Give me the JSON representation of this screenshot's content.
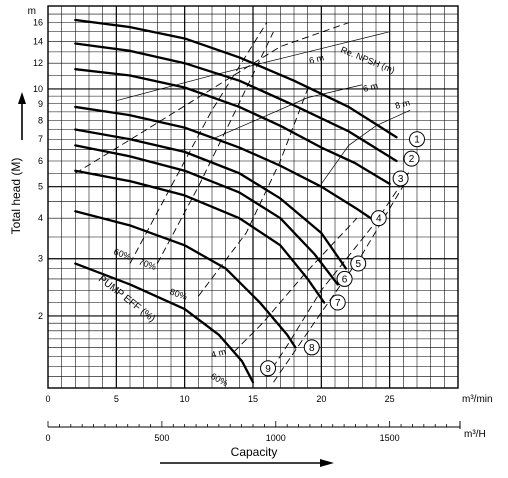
{
  "chart_data": {
    "type": "line",
    "title": "",
    "xlabel": "Capacity",
    "ylabel": "Total head (M)",
    "x_unit": "m³/min",
    "x2_unit": "m³/H",
    "y_unit": "m",
    "xlim": [
      0,
      30
    ],
    "ylim": [
      1.2,
      18
    ],
    "y_scale": "log",
    "grid": true,
    "x_ticks": [
      "0",
      "5",
      "10",
      "15",
      "20",
      "25"
    ],
    "x_tick_values": [
      0,
      5,
      10,
      15,
      20,
      25
    ],
    "x2_ticks": [
      "0",
      "500",
      "1000",
      "1500"
    ],
    "x2_tick_values": [
      0,
      500,
      1000,
      1500
    ],
    "y_ticks": [
      "16",
      "14",
      "12",
      "10",
      "9",
      "8",
      "7",
      "6",
      "5",
      "4",
      "3",
      "2"
    ],
    "y_tick_values": [
      16,
      14,
      12,
      10,
      9,
      8,
      7,
      6,
      5,
      4,
      3,
      2
    ],
    "series": [
      {
        "label": "1",
        "x": [
          2,
          6,
          10,
          14,
          18,
          22,
          25.5
        ],
        "y": [
          16.3,
          15.5,
          14.3,
          12.5,
          10.6,
          8.8,
          7.1
        ]
      },
      {
        "label": "2",
        "x": [
          2,
          6,
          10,
          14,
          18,
          22,
          25.5
        ],
        "y": [
          13.8,
          13.1,
          12.0,
          10.6,
          8.9,
          7.4,
          6.0
        ]
      },
      {
        "label": "3",
        "x": [
          2,
          6,
          10,
          14,
          17,
          20,
          22.5,
          25
        ],
        "y": [
          11.5,
          11.0,
          10.1,
          8.8,
          7.7,
          6.6,
          5.9,
          5.1
        ]
      },
      {
        "label": "4",
        "x": [
          2,
          6,
          10,
          14,
          17,
          20,
          22.5,
          24
        ],
        "y": [
          8.8,
          8.3,
          7.6,
          6.6,
          5.8,
          5.0,
          4.3,
          3.9
        ]
      },
      {
        "label": "5",
        "x": [
          2,
          6,
          10,
          14,
          17,
          20,
          21.8
        ],
        "y": [
          7.5,
          7.0,
          6.4,
          5.5,
          4.6,
          3.6,
          2.8
        ]
      },
      {
        "label": "6",
        "x": [
          2,
          6,
          10,
          14,
          17,
          19.5,
          21.2
        ],
        "y": [
          6.7,
          6.2,
          5.6,
          4.8,
          4.0,
          3.1,
          2.5
        ]
      },
      {
        "label": "7",
        "x": [
          2,
          6,
          10,
          14,
          17,
          19,
          20.2
        ],
        "y": [
          5.6,
          5.2,
          4.7,
          4.0,
          3.3,
          2.6,
          2.2
        ]
      },
      {
        "label": "8",
        "x": [
          2,
          6,
          10,
          13,
          15.5,
          17.5,
          18.1
        ],
        "y": [
          4.2,
          3.8,
          3.3,
          2.8,
          2.2,
          1.75,
          1.6
        ]
      },
      {
        "label": "9",
        "x": [
          2,
          6,
          10,
          12.5,
          14.2,
          15
        ],
        "y": [
          2.9,
          2.5,
          2.1,
          1.75,
          1.45,
          1.25
        ]
      }
    ],
    "npsh": {
      "label": "Re. NPSH (m)",
      "marks": [
        "6 m",
        "6 m",
        "8 m",
        "4 m"
      ]
    },
    "efficiency": {
      "label": "PUMP EFF (%)",
      "marks": [
        "60%",
        "70%",
        "80%",
        "60%"
      ]
    }
  }
}
